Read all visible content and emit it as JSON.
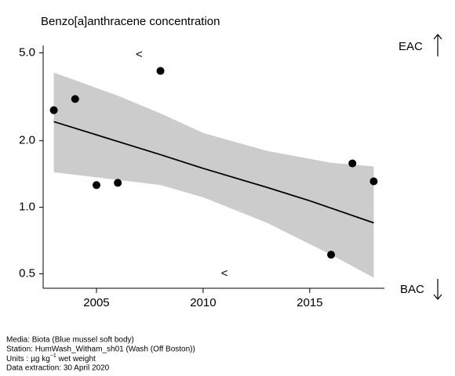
{
  "chart_data": {
    "type": "scatter",
    "title": "Benzo[a]anthracene concentration",
    "xlim": [
      2002.5,
      2018.5
    ],
    "xticks": [
      2005,
      2010,
      2015
    ],
    "ylim": [
      0.43,
      5.4
    ],
    "log_y": true,
    "yticks": [
      {
        "value": 5,
        "label": "5.0"
      },
      {
        "value": 2,
        "label": "2.0"
      },
      {
        "value": 1,
        "label": "1.0"
      },
      0.5
    ],
    "color": "#000000",
    "band_color": "#cccccc",
    "points": {
      "x": [
        2003,
        2004,
        2005,
        2006,
        2008,
        2016,
        2017,
        2018
      ],
      "values": [
        2.75,
        3.09,
        1.26,
        1.29,
        4.14,
        0.61,
        1.58,
        1.31
      ]
    },
    "censored": {
      "marker": "<",
      "x": [
        2007,
        2011
      ],
      "values": [
        4.9,
        0.5
      ]
    },
    "trend": {
      "x": [
        2003,
        2008,
        2010,
        2013,
        2015,
        2018
      ],
      "values": [
        2.44,
        1.73,
        1.5,
        1.23,
        1.07,
        0.85
      ]
    },
    "band": {
      "x": [
        2003,
        2006,
        2008,
        2010,
        2013,
        2016,
        2018
      ],
      "upper": [
        4.07,
        3.2,
        2.66,
        2.17,
        1.8,
        1.59,
        1.53
      ],
      "lower": [
        1.44,
        1.33,
        1.26,
        1.11,
        0.85,
        0.61,
        0.48
      ]
    },
    "upper_label": "EAC",
    "lower_label": "BAC",
    "footer": [
      "Media: Biota (Blue mussel soft body)",
      "Station: HumWash_Witham_sh01 (Wash (Off Boston))"
    ],
    "units": {
      "prefix": "Units : µg kg",
      "sup": "−1",
      "suffix": " wet weight"
    },
    "extraction": "Data extraction: 30 April 2020"
  }
}
